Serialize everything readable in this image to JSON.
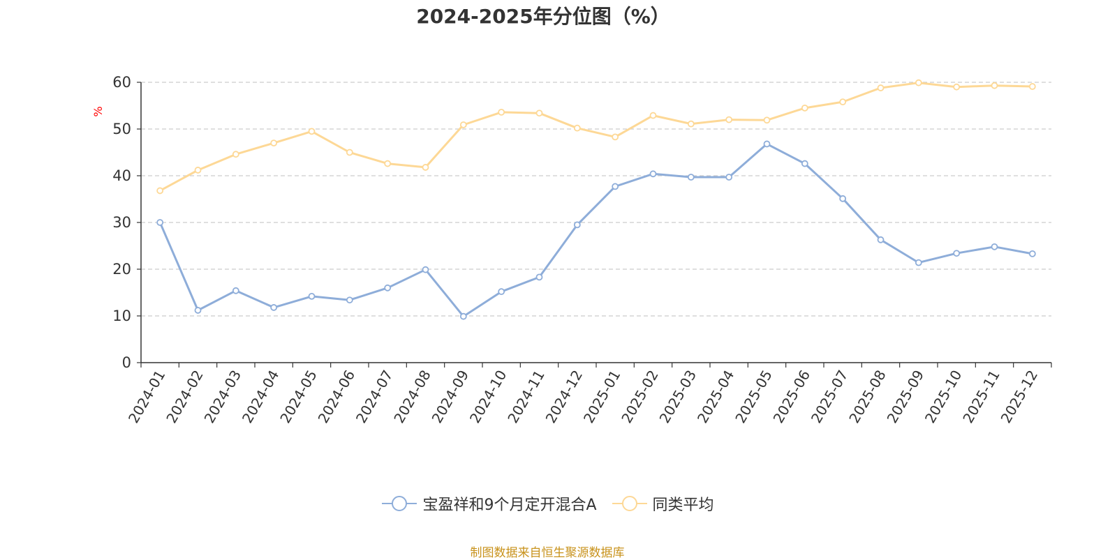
{
  "title": "2024-2025年分位图（%）",
  "source_note": "制图数据来自恒生聚源数据库",
  "colors": {
    "series_a": "#8eadd9",
    "series_b": "#fdd896",
    "source_text": "#c8921b",
    "y_unit_text": "#ff0000",
    "grid": "#cccccc",
    "axis": "#333333"
  },
  "chart_data": {
    "type": "line",
    "title": "2024-2025年分位图（%）",
    "xlabel": "",
    "ylabel": "%",
    "ylim": [
      0,
      60
    ],
    "yticks": [
      0,
      10,
      20,
      30,
      40,
      50,
      60
    ],
    "grid": true,
    "legend_position": "bottom-center",
    "categories": [
      "2024-01",
      "2024-02",
      "2024-03",
      "2024-04",
      "2024-05",
      "2024-06",
      "2024-07",
      "2024-08",
      "2024-09",
      "2024-10",
      "2024-11",
      "2024-12",
      "2025-01",
      "2025-02",
      "2025-03",
      "2025-04",
      "2025-05",
      "2025-06",
      "2025-07",
      "2025-08",
      "2025-09",
      "2025-10",
      "2025-11",
      "2025-12"
    ],
    "series": [
      {
        "name": "宝盈祥和9个月定开混合A",
        "color_key": "series_a",
        "values": [
          30.0,
          11.2,
          15.4,
          11.8,
          14.2,
          13.4,
          16.0,
          19.9,
          9.9,
          15.2,
          18.3,
          29.5,
          37.7,
          40.4,
          39.7,
          39.7,
          46.8,
          42.6,
          35.1,
          26.3,
          21.4,
          23.4,
          24.8,
          23.3
        ]
      },
      {
        "name": "同类平均",
        "color_key": "series_b",
        "values": [
          36.8,
          41.2,
          44.6,
          47.0,
          49.5,
          45.0,
          42.6,
          41.8,
          50.9,
          53.6,
          53.4,
          50.2,
          48.3,
          52.9,
          51.1,
          52.0,
          51.9,
          54.5,
          55.8,
          58.8,
          59.9,
          59.0,
          59.3,
          59.1
        ]
      }
    ]
  }
}
